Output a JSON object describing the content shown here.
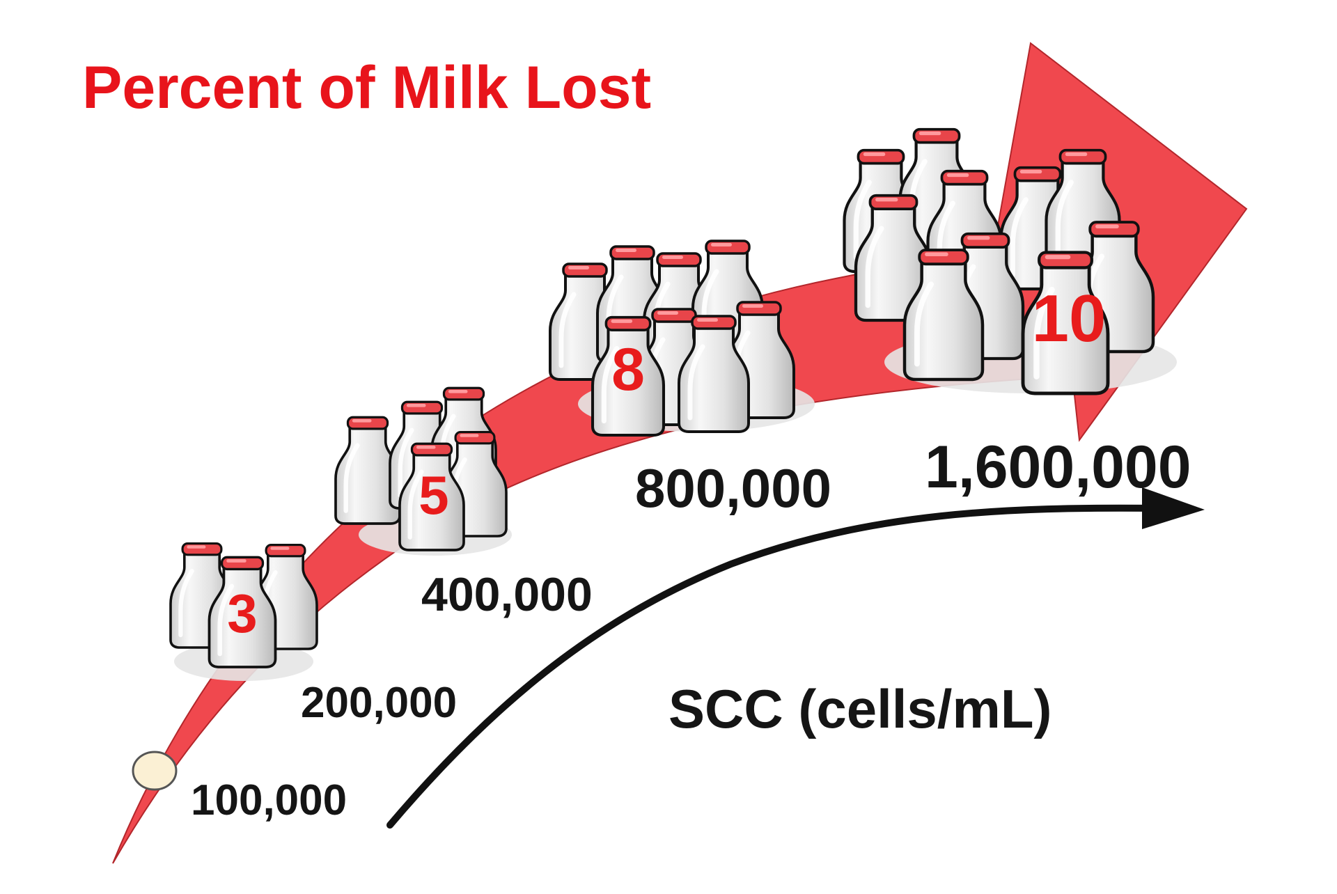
{
  "title": "Percent of Milk Lost",
  "axis_label": "SCC (cells/mL)",
  "colors": {
    "arrow_red": "#f0484e",
    "title_red": "#e8141b",
    "number_red": "#e81c1c",
    "bottle_body": "#efefef",
    "bottle_cap": "#e8454a",
    "text_dark": "#151515",
    "dot_fill": "#fbf0d4"
  },
  "stages": [
    {
      "scc": "100,000",
      "percent_lost": 0,
      "percent_label": "",
      "bottles": 0
    },
    {
      "scc": "200,000",
      "percent_lost": 3,
      "percent_label": "3",
      "bottles": 3
    },
    {
      "scc": "400,000",
      "percent_lost": 5,
      "percent_label": "5",
      "bottles": 5
    },
    {
      "scc": "800,000",
      "percent_lost": 8,
      "percent_label": "8",
      "bottles": 8
    },
    {
      "scc": "1,600,000",
      "percent_lost": 10,
      "percent_label": "10",
      "bottles": 10
    }
  ]
}
